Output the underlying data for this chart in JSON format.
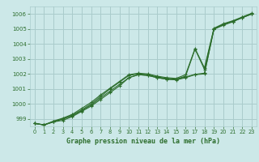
{
  "title": "Graphe pression niveau de la mer (hPa)",
  "bg_color": "#cce8e8",
  "grid_color": "#aacccc",
  "line_color": "#2d6e2d",
  "xlim": [
    -0.5,
    23.5
  ],
  "ylim": [
    998.5,
    1006.5
  ],
  "xticks": [
    0,
    1,
    2,
    3,
    4,
    5,
    6,
    7,
    8,
    9,
    10,
    11,
    12,
    13,
    14,
    15,
    16,
    17,
    18,
    19,
    20,
    21,
    22,
    23
  ],
  "yticks": [
    999,
    1000,
    1001,
    1002,
    1003,
    1004,
    1005,
    1006
  ],
  "series": [
    [
      998.7,
      998.6,
      998.8,
      998.9,
      999.15,
      999.5,
      999.85,
      1000.3,
      1000.75,
      1001.2,
      1001.75,
      1001.95,
      1001.9,
      1001.75,
      1001.65,
      1001.6,
      1001.75,
      1001.95,
      1002.0,
      1005.0,
      1005.3,
      1005.5,
      1005.75,
      1006.0
    ],
    [
      998.7,
      998.6,
      998.8,
      999.0,
      999.25,
      999.6,
      1000.0,
      1000.5,
      1001.0,
      1001.45,
      1001.9,
      1002.0,
      1001.95,
      1001.8,
      1001.7,
      1001.65,
      1001.85,
      1003.65,
      1002.3,
      1005.0,
      1005.3,
      1005.5,
      1005.75,
      1006.0
    ],
    [
      998.7,
      998.6,
      998.85,
      999.05,
      999.3,
      999.7,
      1000.1,
      1000.6,
      1001.05,
      1001.5,
      1001.95,
      1002.05,
      1002.0,
      1001.85,
      1001.75,
      1001.7,
      1001.95,
      1003.7,
      1002.4,
      1005.05,
      1005.35,
      1005.55,
      1005.8,
      1006.05
    ],
    [
      998.7,
      998.6,
      998.8,
      999.0,
      999.2,
      999.55,
      999.92,
      1000.4,
      1000.85,
      1001.3,
      1001.75,
      1001.95,
      1001.9,
      1001.75,
      1001.65,
      1001.62,
      1001.8,
      1001.97,
      1002.05,
      1004.98,
      1005.25,
      1005.48,
      1005.78,
      1006.0
    ]
  ]
}
